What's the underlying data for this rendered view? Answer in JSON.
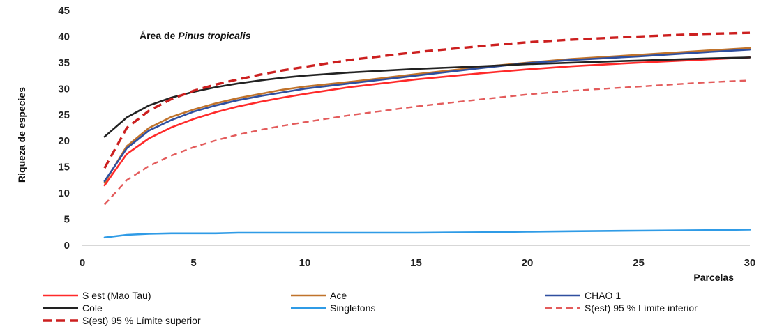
{
  "chart_data": {
    "type": "line",
    "title": "",
    "annotation": {
      "prefix": "Área de ",
      "italic": "Pinus tropicalis"
    },
    "xlabel": "Parcelas",
    "ylabel": "Riqueza de especies",
    "xlim": [
      0,
      30
    ],
    "ylim": [
      0,
      45
    ],
    "xticks": [
      0,
      5,
      10,
      15,
      20,
      25,
      30
    ],
    "yticks": [
      0,
      5,
      10,
      15,
      20,
      25,
      30,
      35,
      40,
      45
    ],
    "grid": false,
    "legend_position": "bottom",
    "x": [
      1,
      2,
      3,
      4,
      5,
      6,
      7,
      8,
      9,
      10,
      12,
      15,
      18,
      20,
      22,
      25,
      28,
      30
    ],
    "series": [
      {
        "name": "S est (Mao Tau)",
        "color": "#ff2a2a",
        "dash": "solid",
        "width": 2.6,
        "values": [
          11.5,
          17.5,
          20.5,
          22.6,
          24.2,
          25.5,
          26.6,
          27.5,
          28.3,
          29.0,
          30.3,
          31.8,
          33.0,
          33.7,
          34.3,
          35.0,
          35.6,
          36.0
        ]
      },
      {
        "name": "Ace",
        "color": "#c0732b",
        "dash": "solid",
        "width": 2.6,
        "values": [
          12.0,
          19.0,
          22.5,
          24.6,
          26.0,
          27.2,
          28.2,
          29.0,
          29.8,
          30.4,
          31.3,
          32.8,
          34.2,
          35.0,
          35.7,
          36.5,
          37.3,
          37.8
        ]
      },
      {
        "name": "CHAO 1",
        "color": "#2f4f9f",
        "dash": "solid",
        "width": 2.6,
        "values": [
          12.3,
          18.6,
          22.0,
          24.0,
          25.6,
          26.8,
          27.8,
          28.6,
          29.3,
          30.0,
          31.0,
          32.5,
          34.0,
          34.9,
          35.5,
          36.2,
          37.0,
          37.5
        ]
      },
      {
        "name": "Cole",
        "color": "#222222",
        "dash": "solid",
        "width": 2.6,
        "values": [
          20.8,
          24.5,
          26.8,
          28.3,
          29.4,
          30.3,
          31.0,
          31.6,
          32.1,
          32.5,
          33.1,
          33.8,
          34.3,
          34.7,
          35.0,
          35.4,
          35.8,
          36.0
        ]
      },
      {
        "name": "Singletons",
        "color": "#2f9be6",
        "dash": "solid",
        "width": 2.6,
        "values": [
          1.5,
          2.0,
          2.2,
          2.3,
          2.3,
          2.3,
          2.4,
          2.4,
          2.4,
          2.4,
          2.4,
          2.4,
          2.5,
          2.6,
          2.7,
          2.8,
          2.9,
          3.0
        ]
      },
      {
        "name": "S(est) 95 % Límite inferior",
        "color": "#e35b5b",
        "dash": "9,6",
        "width": 2.4,
        "values": [
          7.8,
          12.5,
          15.2,
          17.2,
          18.8,
          20.1,
          21.2,
          22.1,
          22.9,
          23.6,
          24.9,
          26.6,
          28.0,
          28.9,
          29.6,
          30.4,
          31.2,
          31.6
        ]
      },
      {
        "name": "S(est) 95 % Límite superior",
        "color": "#cc1f1f",
        "dash": "12,7",
        "width": 3.4,
        "values": [
          14.8,
          22.5,
          25.8,
          28.0,
          29.6,
          30.8,
          31.8,
          32.7,
          33.5,
          34.2,
          35.5,
          37.0,
          38.2,
          38.9,
          39.4,
          40.0,
          40.5,
          40.7
        ]
      }
    ]
  }
}
